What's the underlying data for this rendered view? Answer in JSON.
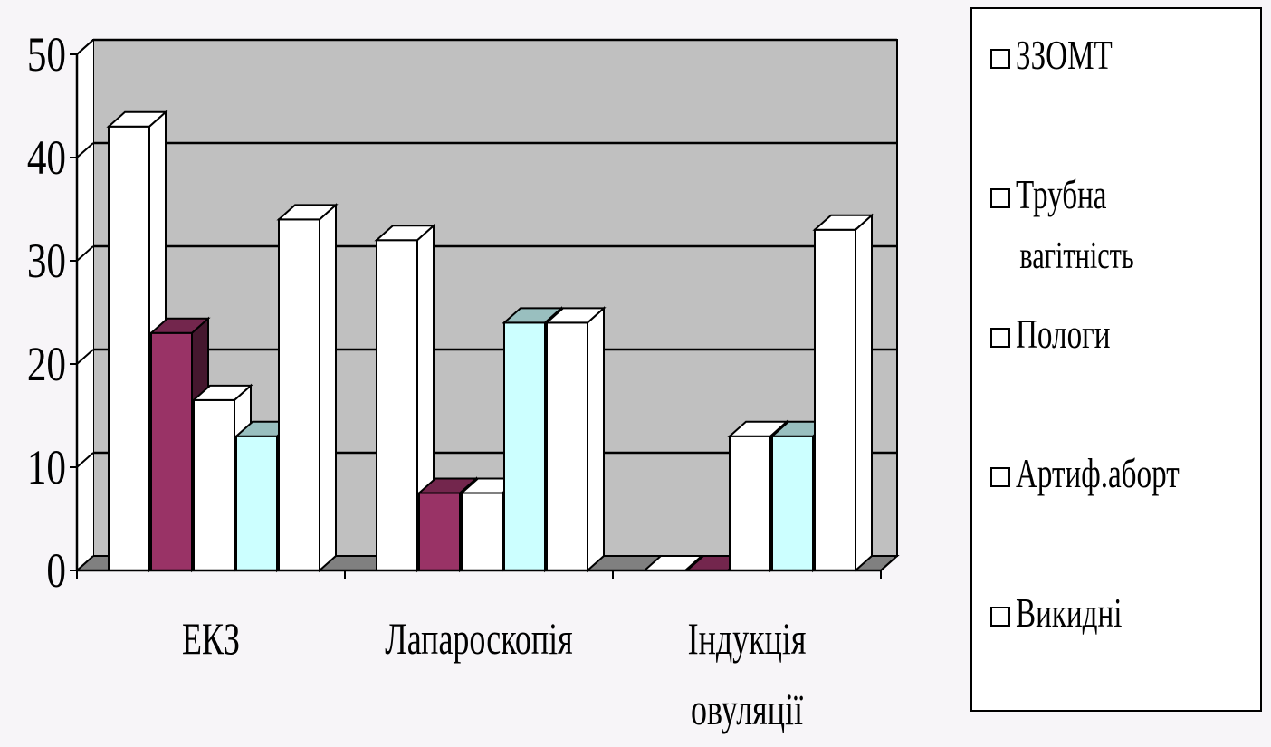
{
  "chart_data": {
    "type": "bar",
    "categories": [
      "ЕКЗ",
      "Лапароскопія",
      "Індукція овуляції"
    ],
    "category_lines": [
      [
        "ЕКЗ"
      ],
      [
        "Лапароскопія"
      ],
      [
        "Індукція",
        "овуляції"
      ]
    ],
    "ylim": [
      0,
      50
    ],
    "yticks": [
      "0",
      "10",
      "20",
      "30",
      "40",
      "50"
    ],
    "grid": true,
    "three_d": true,
    "legend_position": "right",
    "series": [
      {
        "name": "ЗЗОМТ",
        "label_lines": [
          "ЗЗОМТ"
        ],
        "values": [
          43,
          32,
          0
        ],
        "color": "#ffffff"
      },
      {
        "name": "Трубна вагітність",
        "label_lines": [
          "Трубна",
          "вагітність"
        ],
        "values": [
          23,
          7.5,
          0
        ],
        "color": "#993366"
      },
      {
        "name": "Пологи",
        "label_lines": [
          "Пологи"
        ],
        "values": [
          16.5,
          7.5,
          13
        ],
        "color": "#ffffff"
      },
      {
        "name": "Артиф.аборт",
        "label_lines": [
          "Артиф.аборт"
        ],
        "values": [
          13,
          24,
          13
        ],
        "color": "#ccffff"
      },
      {
        "name": "Викидні",
        "label_lines": [
          "Викидні"
        ],
        "values": [
          34,
          24,
          33
        ],
        "color": "#ffffff"
      }
    ],
    "colors": {
      "plot_back": "#c0c0c0",
      "plot_floor": "#808080",
      "grid": "#000000"
    }
  }
}
